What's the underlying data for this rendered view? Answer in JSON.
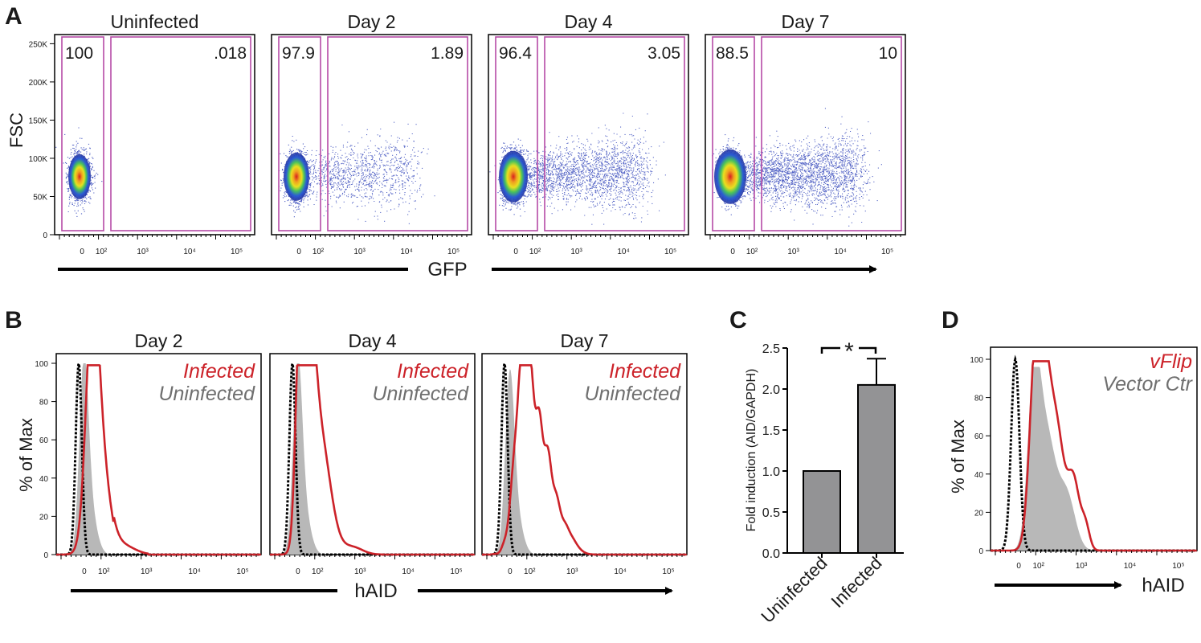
{
  "panel_letters": {
    "a": "A",
    "b": "B",
    "c": "C",
    "d": "D"
  },
  "colors": {
    "gate": "#b54aa6",
    "infected": "#cc2229",
    "uninfected": "#6f6f6f",
    "isotype": "#000000",
    "shaded": "#b8b8b8",
    "bar": "#939395"
  },
  "panel_a": {
    "ylabel": "FSC",
    "xlabel": "GFP",
    "y_ticks": [
      "250K",
      "200K",
      "150K",
      "100K",
      "50K",
      "0"
    ],
    "x_ticks": [
      "0",
      "10²",
      "10³",
      "10⁴",
      "10⁵"
    ],
    "plots": [
      {
        "title": "Uninfected",
        "left_gate": "100",
        "right_gate": ".018"
      },
      {
        "title": "Day 2",
        "left_gate": "97.9",
        "right_gate": "1.89"
      },
      {
        "title": "Day 4",
        "left_gate": "96.4",
        "right_gate": "3.05"
      },
      {
        "title": "Day 7",
        "left_gate": "88.5",
        "right_gate": "10"
      }
    ]
  },
  "panel_b": {
    "ylabel": "% of Max",
    "xlabel": "hAID",
    "y_ticks": [
      "100",
      "80",
      "60",
      "40",
      "20",
      "0"
    ],
    "x_ticks": [
      "0",
      "10²",
      "10³",
      "10⁴",
      "10⁵"
    ],
    "legend_infected": "Infected",
    "legend_uninfected": "Uninfected",
    "plots": [
      {
        "title": "Day 2"
      },
      {
        "title": "Day 4"
      },
      {
        "title": "Day 7"
      }
    ]
  },
  "panel_d": {
    "ylabel": "% of Max",
    "xlabel": "hAID",
    "y_ticks": [
      "100",
      "80",
      "60",
      "40",
      "20",
      "0"
    ],
    "x_ticks": [
      "0",
      "10²",
      "10³",
      "10⁴",
      "10⁵"
    ],
    "legend_vflip": "vFlip",
    "legend_vector": "Vector Ctr"
  },
  "chart_data": [
    {
      "type": "scatter",
      "panel": "A",
      "xlabel": "GFP",
      "ylabel": "FSC",
      "ylim": [
        0,
        262144
      ],
      "x_scale": "biexponential",
      "gates": [
        {
          "sample": "Uninfected",
          "gfp_negative_pct": 100,
          "gfp_positive_pct": 0.018
        },
        {
          "sample": "Day 2",
          "gfp_negative_pct": 97.9,
          "gfp_positive_pct": 1.89
        },
        {
          "sample": "Day 4",
          "gfp_negative_pct": 96.4,
          "gfp_positive_pct": 3.05
        },
        {
          "sample": "Day 7",
          "gfp_negative_pct": 88.5,
          "gfp_positive_pct": 10
        }
      ]
    },
    {
      "type": "line",
      "panel": "B",
      "xlabel": "hAID",
      "ylabel": "% of Max",
      "ylim": [
        0,
        100
      ],
      "x_scale": "biexponential",
      "series": [
        {
          "name": "Infected"
        },
        {
          "name": "Uninfected"
        }
      ],
      "facets": [
        "Day 2",
        "Day 4",
        "Day 7"
      ]
    },
    {
      "type": "bar",
      "panel": "C",
      "categories": [
        "Uninfected",
        "Infected"
      ],
      "values": [
        1.0,
        2.05
      ],
      "errors": [
        0,
        0.32
      ],
      "ylabel": "Fold induction (AID/GAPDH)",
      "ylim": [
        0,
        2.5
      ],
      "y_ticks": [
        "0.0",
        "0.5",
        "1.0",
        "1.5",
        "2.0",
        "2.5"
      ],
      "significance": "*"
    },
    {
      "type": "line",
      "panel": "D",
      "xlabel": "hAID",
      "ylabel": "% of Max",
      "ylim": [
        0,
        100
      ],
      "x_scale": "biexponential",
      "series": [
        {
          "name": "vFlip"
        },
        {
          "name": "Vector Ctr"
        }
      ]
    }
  ]
}
